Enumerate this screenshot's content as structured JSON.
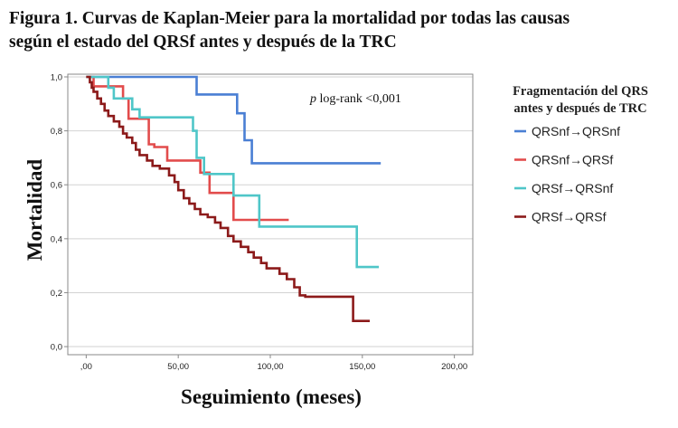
{
  "figure": {
    "title_line1": "Figura 1. Curvas de Kaplan-Meier para la mortalidad por todas las causas",
    "title_line2": "según el estado del QRSf antes y después de la TRC"
  },
  "chart_data": {
    "type": "line",
    "xlabel": "Seguimiento (meses)",
    "ylabel": "Mortalidad",
    "xlim": [
      -10,
      210
    ],
    "ylim": [
      -0.03,
      1.01
    ],
    "x_ticks": [
      0,
      50,
      100,
      150,
      200
    ],
    "x_tick_labels": [
      ",00",
      "50,00",
      "100,00",
      "150,00",
      "200,00"
    ],
    "y_ticks": [
      0,
      0.2,
      0.4,
      0.6,
      0.8,
      1.0
    ],
    "y_tick_labels": [
      "0,0",
      "0,2",
      "0,4",
      "0,6",
      "0,8",
      "1,0"
    ],
    "grid": "horizontal",
    "legend_position": "right",
    "legend_title_line1": "Fragmentación del QRS",
    "legend_title_line2": "antes y después de TRC",
    "annotation": {
      "italic": "p",
      "text": " log-rank <0,001"
    },
    "series": [
      {
        "name": "QRSnf→QRSnf",
        "color": "#4a7fd4",
        "points": [
          [
            0,
            1.0
          ],
          [
            60,
            1.0
          ],
          [
            60,
            0.935
          ],
          [
            82,
            0.935
          ],
          [
            82,
            0.865
          ],
          [
            86,
            0.865
          ],
          [
            86,
            0.765
          ],
          [
            90,
            0.765
          ],
          [
            90,
            0.68
          ],
          [
            160,
            0.68
          ]
        ]
      },
      {
        "name": "QRSnf→QRSf",
        "color": "#e24c4c",
        "points": [
          [
            0,
            1.0
          ],
          [
            4,
            1.0
          ],
          [
            4,
            0.965
          ],
          [
            20,
            0.965
          ],
          [
            20,
            0.92
          ],
          [
            23,
            0.92
          ],
          [
            23,
            0.845
          ],
          [
            34,
            0.845
          ],
          [
            34,
            0.75
          ],
          [
            37,
            0.75
          ],
          [
            37,
            0.74
          ],
          [
            44,
            0.74
          ],
          [
            44,
            0.69
          ],
          [
            62,
            0.69
          ],
          [
            62,
            0.645
          ],
          [
            67,
            0.645
          ],
          [
            67,
            0.57
          ],
          [
            80,
            0.57
          ],
          [
            80,
            0.47
          ],
          [
            110,
            0.47
          ]
        ]
      },
      {
        "name": "QRSf→QRSnf",
        "color": "#4fc6c8",
        "points": [
          [
            0,
            1.0
          ],
          [
            12,
            1.0
          ],
          [
            12,
            0.96
          ],
          [
            15,
            0.96
          ],
          [
            15,
            0.92
          ],
          [
            25,
            0.92
          ],
          [
            25,
            0.88
          ],
          [
            29,
            0.88
          ],
          [
            29,
            0.85
          ],
          [
            58,
            0.85
          ],
          [
            58,
            0.8
          ],
          [
            60,
            0.8
          ],
          [
            60,
            0.7
          ],
          [
            64,
            0.7
          ],
          [
            64,
            0.64
          ],
          [
            80,
            0.64
          ],
          [
            80,
            0.56
          ],
          [
            94,
            0.56
          ],
          [
            94,
            0.445
          ],
          [
            147,
            0.445
          ],
          [
            147,
            0.295
          ],
          [
            159,
            0.295
          ]
        ]
      },
      {
        "name": "QRSf→QRSf",
        "color": "#8c1a1a",
        "points": [
          [
            0,
            1.0
          ],
          [
            2,
            1.0
          ],
          [
            2,
            0.98
          ],
          [
            3,
            0.98
          ],
          [
            3,
            0.96
          ],
          [
            4,
            0.96
          ],
          [
            4,
            0.945
          ],
          [
            6,
            0.945
          ],
          [
            6,
            0.92
          ],
          [
            8,
            0.92
          ],
          [
            8,
            0.9
          ],
          [
            10,
            0.9
          ],
          [
            10,
            0.875
          ],
          [
            12,
            0.875
          ],
          [
            12,
            0.855
          ],
          [
            15,
            0.855
          ],
          [
            15,
            0.835
          ],
          [
            18,
            0.835
          ],
          [
            18,
            0.815
          ],
          [
            20,
            0.815
          ],
          [
            20,
            0.79
          ],
          [
            22,
            0.79
          ],
          [
            22,
            0.775
          ],
          [
            25,
            0.775
          ],
          [
            25,
            0.755
          ],
          [
            27,
            0.755
          ],
          [
            27,
            0.73
          ],
          [
            29,
            0.73
          ],
          [
            29,
            0.71
          ],
          [
            33,
            0.71
          ],
          [
            33,
            0.69
          ],
          [
            36,
            0.69
          ],
          [
            36,
            0.67
          ],
          [
            40,
            0.67
          ],
          [
            40,
            0.66
          ],
          [
            45,
            0.66
          ],
          [
            45,
            0.635
          ],
          [
            48,
            0.635
          ],
          [
            48,
            0.61
          ],
          [
            50,
            0.61
          ],
          [
            50,
            0.58
          ],
          [
            53,
            0.58
          ],
          [
            53,
            0.55
          ],
          [
            56,
            0.55
          ],
          [
            56,
            0.53
          ],
          [
            59,
            0.53
          ],
          [
            59,
            0.51
          ],
          [
            62,
            0.51
          ],
          [
            62,
            0.49
          ],
          [
            66,
            0.49
          ],
          [
            66,
            0.48
          ],
          [
            70,
            0.48
          ],
          [
            70,
            0.46
          ],
          [
            73,
            0.46
          ],
          [
            73,
            0.44
          ],
          [
            77,
            0.44
          ],
          [
            77,
            0.41
          ],
          [
            80,
            0.41
          ],
          [
            80,
            0.39
          ],
          [
            84,
            0.39
          ],
          [
            84,
            0.37
          ],
          [
            88,
            0.37
          ],
          [
            88,
            0.35
          ],
          [
            91,
            0.35
          ],
          [
            91,
            0.33
          ],
          [
            95,
            0.33
          ],
          [
            95,
            0.31
          ],
          [
            98,
            0.31
          ],
          [
            98,
            0.29
          ],
          [
            105,
            0.29
          ],
          [
            105,
            0.27
          ],
          [
            109,
            0.27
          ],
          [
            109,
            0.25
          ],
          [
            113,
            0.25
          ],
          [
            113,
            0.22
          ],
          [
            116,
            0.22
          ],
          [
            116,
            0.19
          ],
          [
            119,
            0.19
          ],
          [
            119,
            0.185
          ],
          [
            145,
            0.185
          ],
          [
            145,
            0.095
          ],
          [
            154,
            0.095
          ]
        ]
      }
    ]
  }
}
